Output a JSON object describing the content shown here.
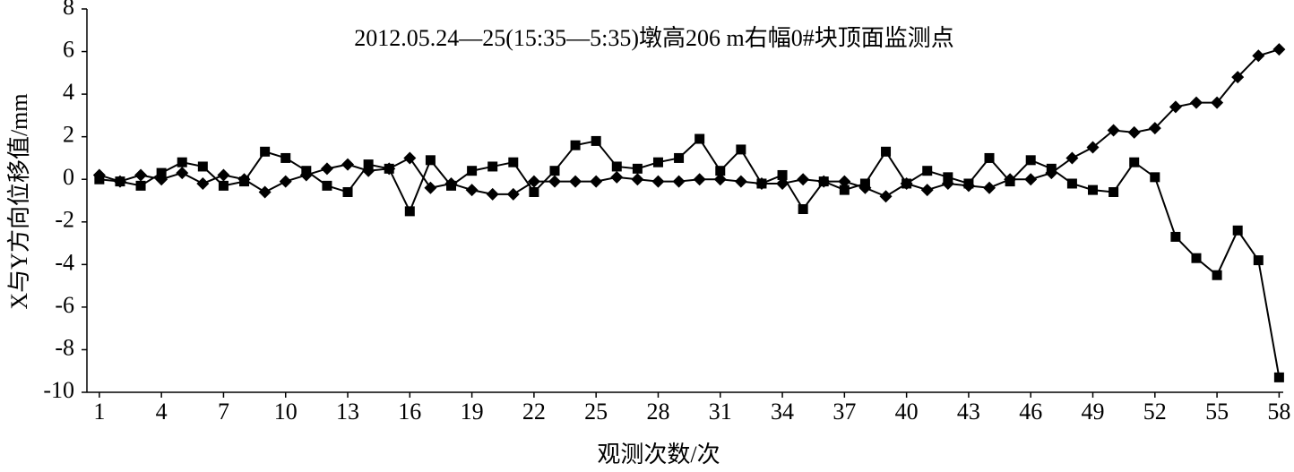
{
  "chart_data": {
    "type": "line",
    "title": "2012.05.24—25(15:35—5:35)墩高206 m右幅0#块顶面监测点",
    "x_label": "观测次数/次",
    "y_label": "X与Y方向位移值/mm",
    "x": [
      1,
      2,
      3,
      4,
      5,
      6,
      7,
      8,
      9,
      10,
      11,
      12,
      13,
      14,
      15,
      16,
      17,
      18,
      19,
      20,
      21,
      22,
      23,
      24,
      25,
      26,
      27,
      28,
      29,
      30,
      31,
      32,
      33,
      34,
      35,
      36,
      37,
      38,
      39,
      40,
      41,
      42,
      43,
      44,
      45,
      46,
      47,
      48,
      49,
      50,
      51,
      52,
      53,
      54,
      55,
      56,
      57,
      58
    ],
    "series": [
      {
        "color": "#000000",
        "marker": "diamond",
        "values": [
          0.2,
          -0.1,
          0.2,
          0,
          0.3,
          -0.2,
          0.2,
          0,
          -0.6,
          -0.1,
          0.2,
          0.5,
          0.7,
          0.4,
          0.5,
          1.0,
          -0.4,
          -0.2,
          -0.5,
          -0.7,
          -0.7,
          -0.1,
          -0.1,
          -0.1,
          -0.1,
          0.1,
          0,
          -0.1,
          -0.1,
          0,
          0,
          -0.1,
          -0.2,
          -0.2,
          0,
          -0.1,
          -0.1,
          -0.4,
          -0.8,
          -0.2,
          -0.5,
          -0.2,
          -0.3,
          -0.4,
          0,
          0,
          0.3,
          1.0,
          1.5,
          2.3,
          2.2,
          2.4,
          3.4,
          3.6,
          3.6,
          4.8,
          5.8,
          6.1
        ]
      },
      {
        "color": "#000000",
        "marker": "square",
        "values": [
          0,
          -0.1,
          -0.3,
          0.3,
          0.8,
          0.6,
          -0.3,
          -0.1,
          1.3,
          1.0,
          0.4,
          -0.3,
          -0.6,
          0.7,
          0.5,
          -1.5,
          0.9,
          -0.3,
          0.4,
          0.6,
          0.8,
          -0.6,
          0.4,
          1.6,
          1.8,
          0.6,
          0.5,
          0.8,
          1.0,
          1.9,
          0.4,
          1.4,
          -0.2,
          0.2,
          -1.4,
          -0.1,
          -0.5,
          -0.2,
          1.3,
          -0.2,
          0.4,
          0.1,
          -0.2,
          1.0,
          -0.1,
          0.9,
          0.5,
          -0.2,
          -0.5,
          -0.6,
          0.8,
          0.1,
          -2.7,
          -3.7,
          -4.5,
          -2.4,
          -3.8,
          -9.3
        ]
      }
    ],
    "xlim": [
      0.4,
      58.2
    ],
    "xticks": [
      1,
      4,
      7,
      10,
      13,
      16,
      19,
      22,
      25,
      28,
      31,
      34,
      37,
      40,
      43,
      46,
      49,
      52,
      55,
      58
    ],
    "ylim": [
      -10,
      8
    ],
    "yticks": [
      -10,
      -8,
      -6,
      -4,
      -2,
      0,
      2,
      4,
      6,
      8
    ],
    "grid": false
  }
}
